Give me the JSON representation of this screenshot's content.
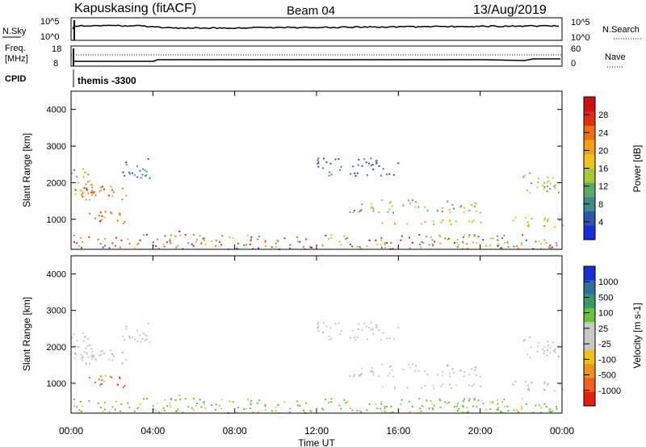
{
  "header": {
    "station": "Kapuskasing (fitACF)",
    "beam": "Beam 04",
    "date": "13/Aug/2019"
  },
  "noise_panel": {
    "left_label": "N.Sky",
    "right_label": "N.Search",
    "left_ticks": [
      "10^5",
      "10^0"
    ],
    "right_ticks": [
      "10^5",
      "10^0"
    ]
  },
  "freq_panel": {
    "left_label_top": "Freq.",
    "left_label_unit": "[MHz]",
    "right_label": "Nave",
    "left_ticks": [
      "18",
      "8"
    ],
    "right_ticks": [
      "60",
      "0"
    ]
  },
  "cpid": {
    "label": "CPID",
    "value": "themis -3300"
  },
  "axes": {
    "ylabel": "Slant Range [km]",
    "xlabel": "Time UT",
    "y_ticks": [
      "1000",
      "2000",
      "3000",
      "4000"
    ],
    "x_ticks": [
      "00:00",
      "04:00",
      "08:00",
      "12:00",
      "16:00",
      "20:00",
      "00:00"
    ]
  },
  "power_colorbar": {
    "label": "Power [dB]",
    "ticks": [
      "4",
      "8",
      "12",
      "16",
      "20",
      "24",
      "28"
    ],
    "colors": [
      "#1a2bd8",
      "#2f55a8",
      "#3c8a8a",
      "#5fa86c",
      "#a8c83c",
      "#f0c020",
      "#f0a018",
      "#f07010",
      "#e03010",
      "#d01010"
    ]
  },
  "velocity_colorbar": {
    "label": "Velocity [m s-1]",
    "ticks": [
      "1000",
      "500",
      "100",
      "25",
      "-25",
      "-100",
      "-500",
      "-1000"
    ],
    "colors": [
      "#1a2bd8",
      "#2f6f9a",
      "#3c9a6a",
      "#6cc040",
      "#c8c8c0",
      "#c8c8c0",
      "#f0c020",
      "#f09020",
      "#f06020",
      "#e02010"
    ]
  },
  "chart_data": {
    "type": "heatmap",
    "x_range_hours": [
      0,
      24
    ],
    "y_range_km": [
      180,
      4500
    ],
    "panels": [
      "Power [dB]",
      "Velocity [m s-1]"
    ],
    "power_range_db": [
      0,
      30
    ],
    "velocity_range_ms": [
      -1000,
      1000
    ],
    "scatter_regions": [
      {
        "t": [
          0.0,
          3.0
        ],
        "r": [
          1550,
          2050
        ],
        "power": "16-28",
        "velocity": "-25..25"
      },
      {
        "t": [
          0.8,
          2.6
        ],
        "r": [
          850,
          1250
        ],
        "power": "20-28",
        "velocity": "-1000..-100"
      },
      {
        "t": [
          0.0,
          1.0
        ],
        "r": [
          1700,
          2400
        ],
        "power": "8-20",
        "velocity": "-25..25"
      },
      {
        "t": [
          2.5,
          4.0
        ],
        "r": [
          2100,
          2700
        ],
        "power": "4-12",
        "velocity": "-25..25"
      },
      {
        "t": [
          4.5,
          6.0
        ],
        "r": [
          580,
          720
        ],
        "power": "20-28",
        "velocity": "-100..-25"
      },
      {
        "t": [
          0.0,
          24.0
        ],
        "r": [
          200,
          600
        ],
        "power": "4-28",
        "velocity": "25..100"
      },
      {
        "t": [
          12.0,
          16.0
        ],
        "r": [
          2200,
          2700
        ],
        "power": "4-8",
        "velocity": "-25..25"
      },
      {
        "t": [
          13.5,
          20.0
        ],
        "r": [
          1200,
          1550
        ],
        "power": "8-16",
        "velocity": "-25..25"
      },
      {
        "t": [
          14.5,
          20.0
        ],
        "r": [
          850,
          1000
        ],
        "power": "12-20",
        "velocity": "-25..25"
      },
      {
        "t": [
          21.5,
          24.0
        ],
        "r": [
          800,
          1100
        ],
        "power": "12-24",
        "velocity": "-25..25"
      },
      {
        "t": [
          22.0,
          24.0
        ],
        "r": [
          1700,
          2300
        ],
        "power": "8-20",
        "velocity": "-25..25"
      }
    ]
  }
}
